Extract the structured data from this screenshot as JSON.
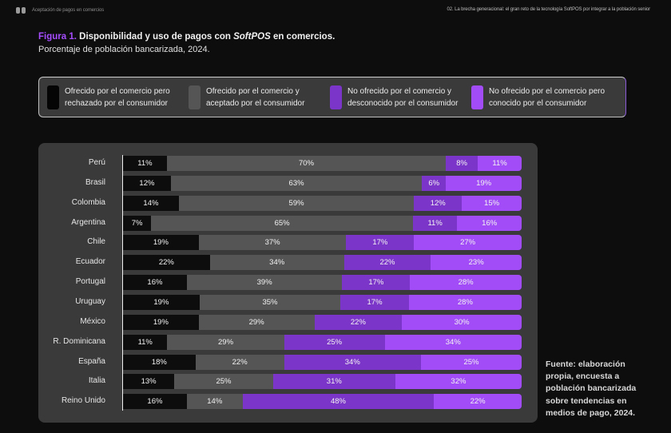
{
  "header": {
    "logo_icon": "book-icon",
    "section": "Aceptación de pagos en comercios",
    "chapter": "02. La brecha generacional: el gran reto de la tecnología SoftPOS por integrar a la población senior"
  },
  "figure": {
    "number": "Figura 1.",
    "title_pre": " Disponibilidad y uso de pagos con ",
    "title_em": "SoftPOS",
    "title_post": " en comercios.",
    "subtitle": "Porcentaje de población bancarizada, 2024."
  },
  "colors": {
    "rejected": "#0d0d0d",
    "accepted": "#555555",
    "unknown": "#7b35c9",
    "known": "#a24cf7",
    "accent": "#a64dff"
  },
  "chart_data": {
    "type": "bar",
    "orientation": "horizontal",
    "stacked": true,
    "title": "Disponibilidad y uso de pagos con SoftPOS en comercios.",
    "subtitle": "Porcentaje de población bancarizada, 2024.",
    "xlabel": "",
    "ylabel": "",
    "xlim": [
      0,
      100
    ],
    "grid": false,
    "legend_position": "top",
    "categories": [
      "Perú",
      "Brasil",
      "Colombia",
      "Argentina",
      "Chile",
      "Ecuador",
      "Portugal",
      "Uruguay",
      "México",
      "R. Dominicana",
      "España",
      "Italia",
      "Reino Unido"
    ],
    "series": [
      {
        "name": "Ofrecido por el comercio pero rechazado por el consumidor",
        "color": "#0d0d0d",
        "values": [
          11,
          12,
          14,
          7,
          19,
          22,
          16,
          19,
          19,
          11,
          18,
          13,
          16
        ]
      },
      {
        "name": "Ofrecido por el comercio y aceptado por el consumidor",
        "color": "#555555",
        "values": [
          70,
          63,
          59,
          65,
          37,
          34,
          39,
          35,
          29,
          29,
          22,
          25,
          14
        ]
      },
      {
        "name": "No ofrecido por el comercio y desconocido por el consumidor",
        "color": "#7b35c9",
        "values": [
          8,
          6,
          12,
          11,
          17,
          22,
          17,
          17,
          22,
          25,
          34,
          31,
          48
        ]
      },
      {
        "name": "No ofrecido por el comercio pero conocido por el consumidor",
        "color": "#a24cf7",
        "values": [
          11,
          19,
          15,
          16,
          27,
          23,
          28,
          28,
          30,
          34,
          25,
          32,
          22
        ]
      }
    ],
    "value_suffix": "%"
  },
  "legend": [
    {
      "line1": "Ofrecido por el comercio pero",
      "line2": "rechazado por el consumidor"
    },
    {
      "line1": "Ofrecido por el comercio y",
      "line2": "aceptado por el consumidor"
    },
    {
      "line1": "No ofrecido por el comercio y",
      "line2": "desconocido por el consumidor"
    },
    {
      "line1": "No ofrecido por el comercio pero",
      "line2": "conocido por el consumidor"
    }
  ],
  "source": "Fuente: elaboración propia, encuesta a población bancarizada sobre tendencias en medios de pago, 2024."
}
